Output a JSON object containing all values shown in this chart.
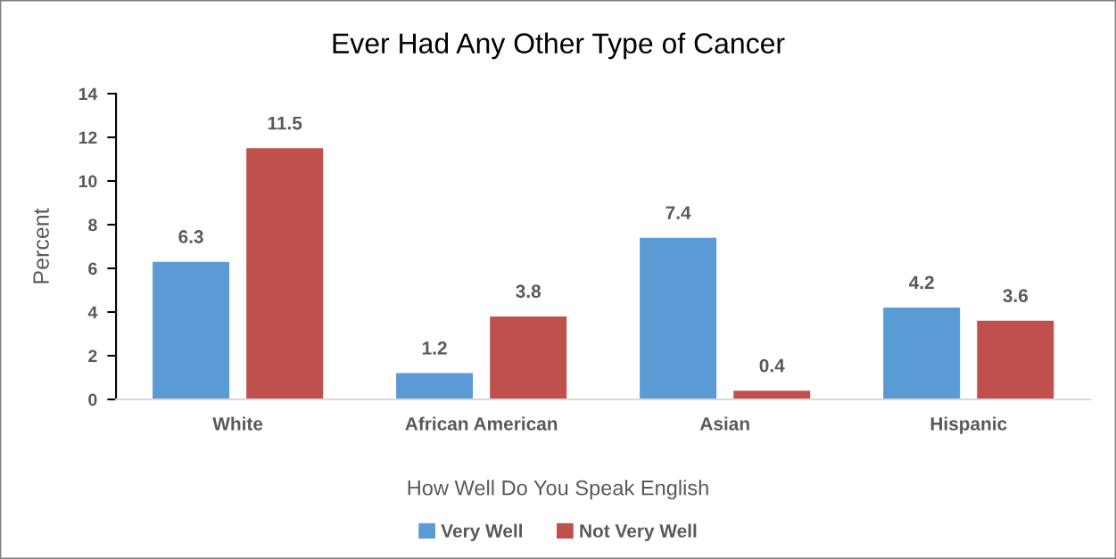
{
  "chart_data": {
    "type": "bar",
    "title": "Ever Had Any Other Type of Cancer",
    "xlabel": "How Well Do You Speak English",
    "ylabel": "Percent",
    "categories": [
      "White",
      "African American",
      "Asian",
      "Hispanic"
    ],
    "series": [
      {
        "name": "Very Well",
        "color": "#5b9bd5",
        "values": [
          6.3,
          1.2,
          7.4,
          4.2
        ]
      },
      {
        "name": "Not Very Well",
        "color": "#c0504d",
        "values": [
          11.5,
          3.8,
          0.4,
          3.6
        ]
      }
    ],
    "ylim": [
      0,
      14
    ],
    "yticks": [
      0,
      2,
      4,
      6,
      8,
      10,
      12,
      14
    ],
    "grid": false,
    "legend": "bottom",
    "data_labels": true
  }
}
